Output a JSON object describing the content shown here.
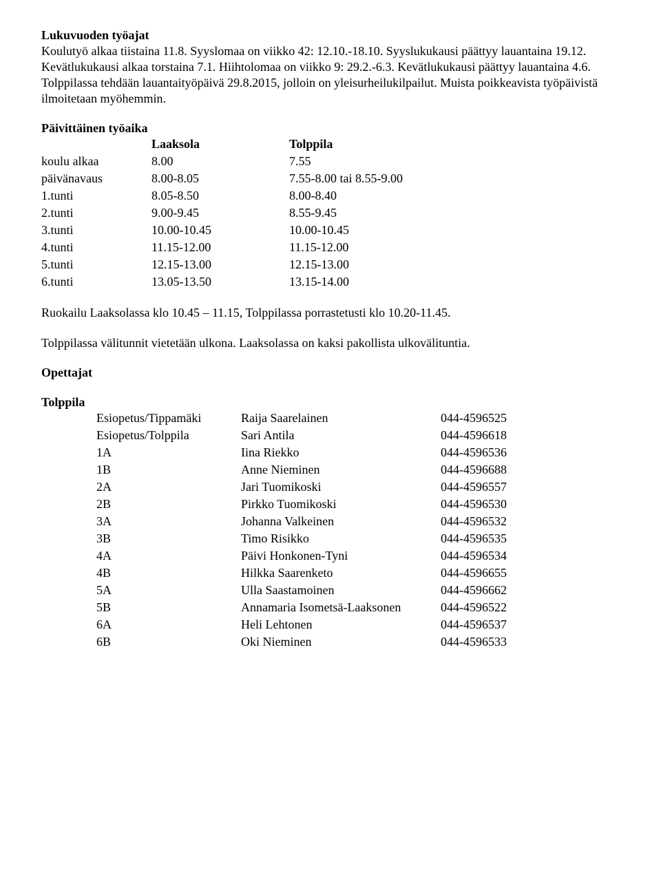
{
  "heading1": "Lukuvuoden työajat",
  "intro": "Koulutyö alkaa tiistaina 11.8. Syyslomaa on viikko 42: 12.10.-18.10. Syyslukukausi päättyy lauantaina 19.12. Kevätlukukausi alkaa torstaina 7.1. Hiihtolomaa on viikko 9: 29.2.-6.3. Kevätlukukausi päättyy lauantaina 4.6. Tolppilassa tehdään lauantaityöpäivä 29.8.2015, jolloin on yleisurheilukilpailut. Muista poikkeavista työpäivistä ilmoitetaan myöhemmin.",
  "heading2": "Päivittäinen työaika",
  "schedule": {
    "headers": {
      "col1": "Laaksola",
      "col2": "Tolppila"
    },
    "rows": [
      {
        "label": "koulu alkaa",
        "c1": "8.00",
        "c2": "7.55"
      },
      {
        "label": "päivänavaus",
        "c1": "8.00-8.05",
        "c2": "7.55-8.00 tai 8.55-9.00"
      },
      {
        "label": "1.tunti",
        "c1": "8.05-8.50",
        "c2": "8.00-8.40"
      },
      {
        "label": "2.tunti",
        "c1": "9.00-9.45",
        "c2": "8.55-9.45"
      },
      {
        "label": "3.tunti",
        "c1": "10.00-10.45",
        "c2": "10.00-10.45"
      },
      {
        "label": "4.tunti",
        "c1": "11.15-12.00",
        "c2": "11.15-12.00"
      },
      {
        "label": "5.tunti",
        "c1": "12.15-13.00",
        "c2": "12.15-13.00"
      },
      {
        "label": "6.tunti",
        "c1": "13.05-13.50",
        "c2": "13.15-14.00"
      }
    ]
  },
  "lunch": "Ruokailu Laaksolassa klo 10.45 – 11.15, Tolppilassa porrastetusti klo 10.20-11.45.",
  "breaks": "Tolppilassa välitunnit vietetään ulkona. Laaksolassa on kaksi pakollista ulkovälituntia.",
  "heading3": "Opettajat",
  "school": "Tolppila",
  "teachers": [
    {
      "cls": "Esiopetus/Tippamäki",
      "name": "Raija Saarelainen",
      "phone": "044-4596525"
    },
    {
      "cls": "Esiopetus/Tolppila",
      "name": "Sari Antila",
      "phone": "044-4596618"
    },
    {
      "cls": "1A",
      "name": "Iina Riekko",
      "phone": "044-4596536"
    },
    {
      "cls": "1B",
      "name": "Anne Nieminen",
      "phone": "044-4596688"
    },
    {
      "cls": "2A",
      "name": "Jari Tuomikoski",
      "phone": "044-4596557"
    },
    {
      "cls": "2B",
      "name": "Pirkko Tuomikoski",
      "phone": "044-4596530"
    },
    {
      "cls": "3A",
      "name": "Johanna Valkeinen",
      "phone": "044-4596532"
    },
    {
      "cls": "3B",
      "name": "Timo Risikko",
      "phone": "044-4596535"
    },
    {
      "cls": "4A",
      "name": "Päivi Honkonen-Tyni",
      "phone": "044-4596534"
    },
    {
      "cls": "4B",
      "name": "Hilkka Saarenketo",
      "phone": "044-4596655"
    },
    {
      "cls": "5A",
      "name": "Ulla Saastamoinen",
      "phone": "044-4596662"
    },
    {
      "cls": "5B",
      "name": "Annamaria Isometsä-Laaksonen",
      "phone": "044-4596522"
    },
    {
      "cls": "6A",
      "name": "Heli Lehtonen",
      "phone": "044-4596537"
    },
    {
      "cls": "6B",
      "name": "Oki Nieminen",
      "phone": "044-4596533"
    }
  ]
}
